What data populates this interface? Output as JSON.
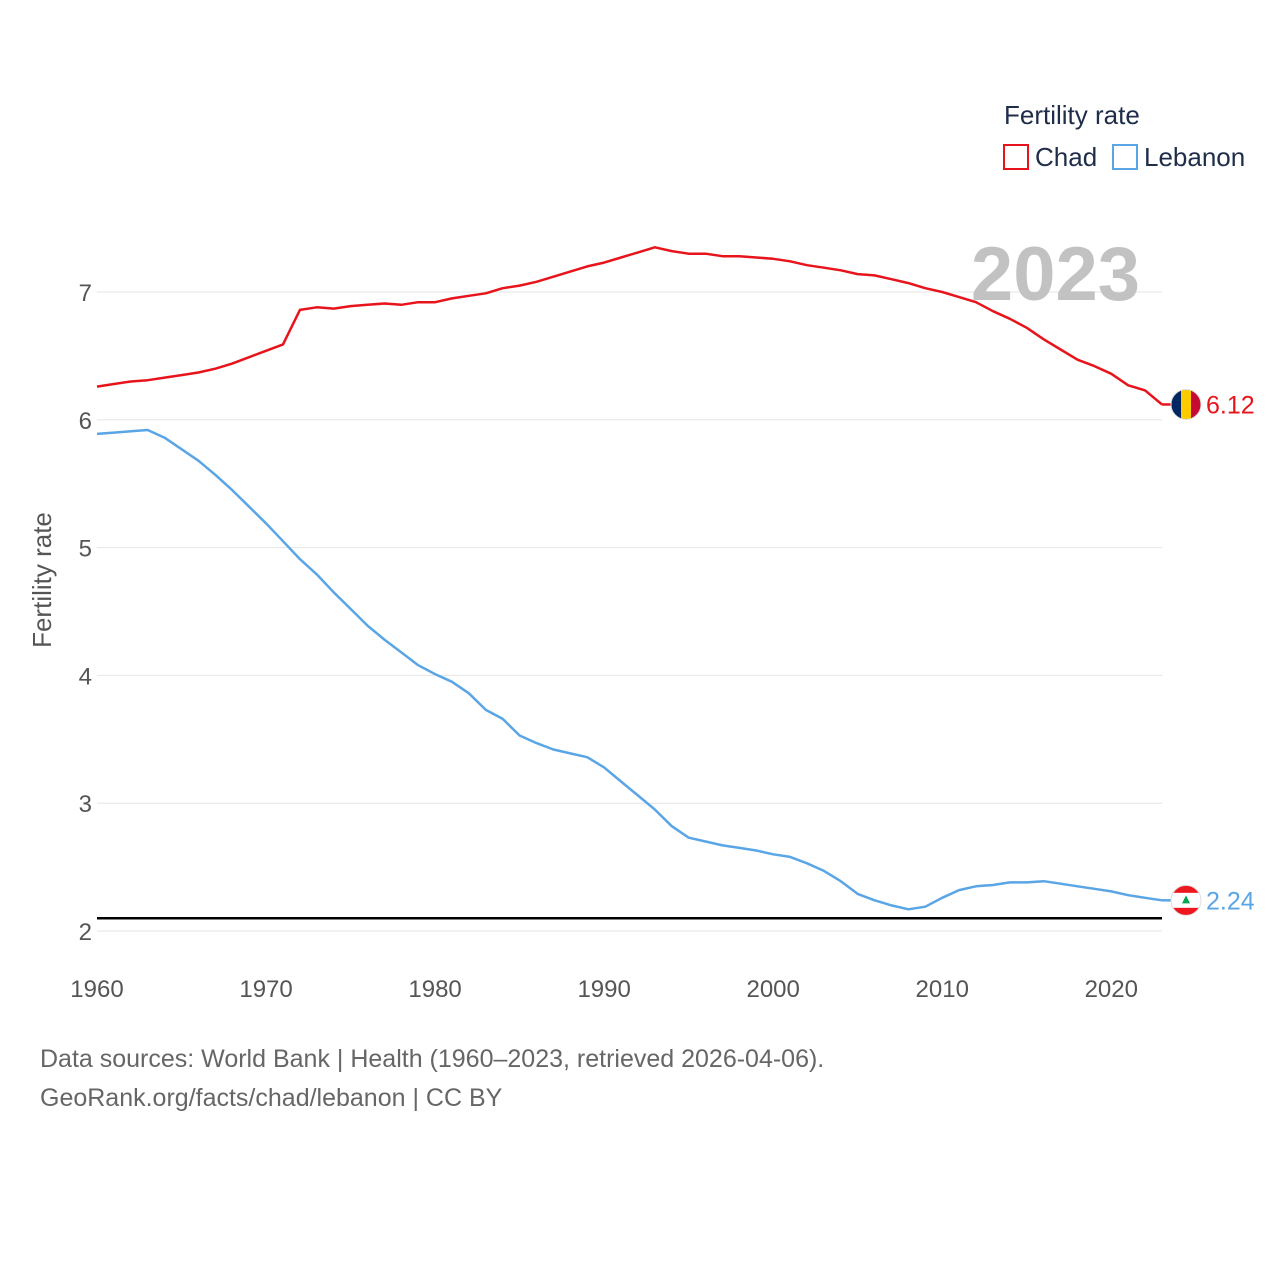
{
  "chart_data": {
    "type": "line",
    "title": "",
    "xlabel": "",
    "ylabel": "Fertility rate",
    "xlim": [
      1960,
      2023
    ],
    "ylim": [
      2,
      7.5
    ],
    "x_ticks": [
      1960,
      1970,
      1980,
      1990,
      2000,
      2010,
      2020
    ],
    "y_ticks": [
      2,
      3,
      4,
      5,
      6,
      7
    ],
    "reference_line": 2.1,
    "current_year_label": "2023",
    "legend": {
      "title": "Fertility rate",
      "position": "top-right",
      "items": [
        "Chad",
        "Lebanon"
      ]
    },
    "x": [
      1960,
      1961,
      1962,
      1963,
      1964,
      1965,
      1966,
      1967,
      1968,
      1969,
      1970,
      1971,
      1972,
      1973,
      1974,
      1975,
      1976,
      1977,
      1978,
      1979,
      1980,
      1981,
      1982,
      1983,
      1984,
      1985,
      1986,
      1987,
      1988,
      1989,
      1990,
      1991,
      1992,
      1993,
      1994,
      1995,
      1996,
      1997,
      1998,
      1999,
      2000,
      2001,
      2002,
      2003,
      2004,
      2005,
      2006,
      2007,
      2008,
      2009,
      2010,
      2011,
      2012,
      2013,
      2014,
      2015,
      2016,
      2017,
      2018,
      2019,
      2020,
      2021,
      2022,
      2023
    ],
    "series": [
      {
        "name": "Chad",
        "color": "#e8141c",
        "end_label": "6.12",
        "flag": "chad",
        "values": [
          6.26,
          6.28,
          6.3,
          6.31,
          6.33,
          6.35,
          6.37,
          6.4,
          6.44,
          6.49,
          6.54,
          6.59,
          6.86,
          6.88,
          6.87,
          6.89,
          6.9,
          6.91,
          6.9,
          6.92,
          6.92,
          6.95,
          6.97,
          6.99,
          7.03,
          7.05,
          7.08,
          7.12,
          7.16,
          7.2,
          7.23,
          7.27,
          7.31,
          7.35,
          7.32,
          7.3,
          7.3,
          7.28,
          7.28,
          7.27,
          7.26,
          7.24,
          7.21,
          7.19,
          7.17,
          7.14,
          7.13,
          7.1,
          7.07,
          7.03,
          7.0,
          6.96,
          6.92,
          6.85,
          6.79,
          6.72,
          6.63,
          6.55,
          6.47,
          6.42,
          6.36,
          6.27,
          6.23,
          6.12
        ]
      },
      {
        "name": "Lebanon",
        "color": "#5aa5e6",
        "end_label": "2.24",
        "flag": "lebanon",
        "values": [
          5.89,
          5.9,
          5.91,
          5.92,
          5.86,
          5.77,
          5.68,
          5.57,
          5.45,
          5.32,
          5.19,
          5.05,
          4.91,
          4.79,
          4.65,
          4.52,
          4.39,
          4.28,
          4.18,
          4.08,
          4.01,
          3.95,
          3.86,
          3.73,
          3.66,
          3.53,
          3.47,
          3.42,
          3.39,
          3.36,
          3.28,
          3.17,
          3.06,
          2.95,
          2.82,
          2.73,
          2.7,
          2.67,
          2.65,
          2.63,
          2.6,
          2.58,
          2.53,
          2.47,
          2.39,
          2.29,
          2.24,
          2.2,
          2.17,
          2.19,
          2.26,
          2.32,
          2.35,
          2.36,
          2.38,
          2.38,
          2.39,
          2.37,
          2.35,
          2.33,
          2.31,
          2.28,
          2.26,
          2.24
        ]
      }
    ]
  },
  "footer": {
    "sources": "Data sources: World Bank | Health (1960–2023, retrieved 2026-04-06).",
    "credit": "GeoRank.org/facts/chad/lebanon | CC BY"
  }
}
